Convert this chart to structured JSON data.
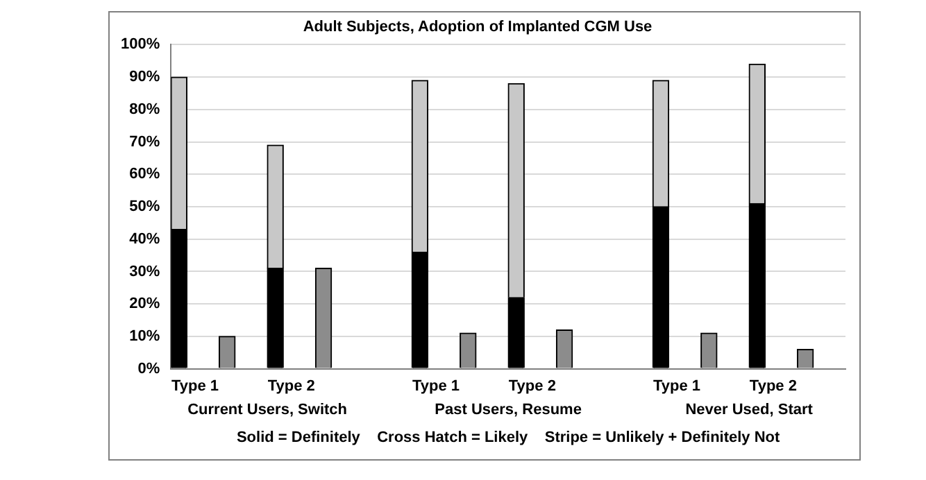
{
  "chart_data": {
    "type": "bar",
    "title": "Adult Subjects, Adoption of Implanted CGM Use",
    "categories": [
      "Type 1",
      null,
      "Type 2",
      null,
      null,
      "Type 1",
      null,
      "Type 2",
      null,
      null,
      "Type 1",
      null,
      "Type 2",
      null
    ],
    "series": [
      {
        "color": "#000000",
        "values": [
          43,
          null,
          31,
          null,
          null,
          36,
          null,
          22,
          null,
          null,
          50,
          null,
          51,
          null
        ]
      },
      {
        "color": "#c8c8c8",
        "values": [
          47,
          null,
          38,
          null,
          null,
          53,
          null,
          66,
          null,
          null,
          39,
          null,
          43,
          null
        ]
      },
      {
        "color": "#8c8c8c",
        "values": [
          null,
          10,
          null,
          31,
          null,
          null,
          11,
          null,
          12,
          null,
          null,
          11,
          null,
          6
        ]
      }
    ],
    "stacked": true,
    "ylim": [
      0,
      100
    ],
    "yticks": [
      {
        "value": 0,
        "label": "0%"
      },
      {
        "value": 10,
        "label": "10%"
      },
      {
        "value": 20,
        "label": "20%"
      },
      {
        "value": 30,
        "label": "30%"
      },
      {
        "value": 40,
        "label": "40%"
      },
      {
        "value": 50,
        "label": "50%"
      },
      {
        "value": 60,
        "label": "60%"
      },
      {
        "value": 70,
        "label": "70%"
      },
      {
        "value": 80,
        "label": "80%"
      },
      {
        "value": 90,
        "label": "90%"
      },
      {
        "value": 100,
        "label": "100%"
      }
    ],
    "grid": "y",
    "annotations": [
      "Current Users, Switch",
      "Past Users, Resume",
      "Never Used, Start",
      "Solid = Definitely    Cross Hatch = Likely    Stripe = Unlikely + Definitely Not"
    ]
  }
}
